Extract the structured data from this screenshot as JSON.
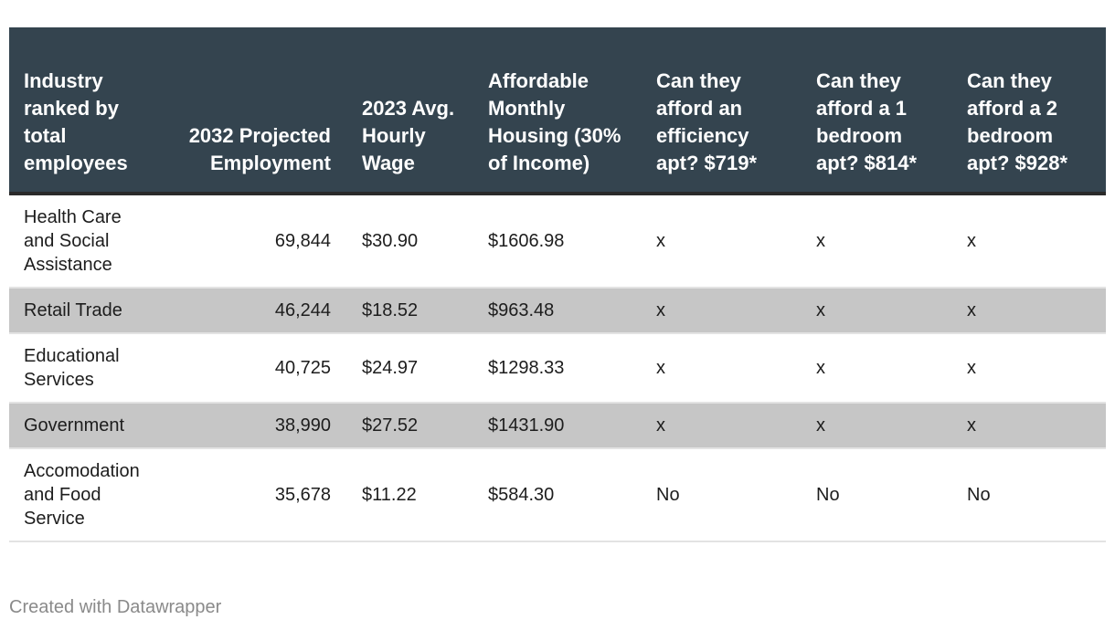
{
  "chart_data": {
    "type": "table",
    "columns": [
      "Industry ranked by total employees",
      "2032 Projected Employment",
      "2023 Avg. Hourly Wage",
      "Affordable Monthly Housing (30% of Income)",
      "Can they afford an efficiency apt? $719*",
      "Can they afford a 1 bedroom apt? $814*",
      "Can they afford a 2 bedroom apt? $928*"
    ],
    "rows": [
      [
        "Health Care and Social Assistance",
        "69,844",
        "$30.90",
        "$1606.98",
        "x",
        "x",
        "x"
      ],
      [
        "Retail Trade",
        "46,244",
        "$18.52",
        "$963.48",
        "x",
        "x",
        "x"
      ],
      [
        "Educational Services",
        "40,725",
        "$24.97",
        "$1298.33",
        "x",
        "x",
        "x"
      ],
      [
        "Government",
        "38,990",
        "$27.52",
        "$1431.90",
        "x",
        "x",
        "x"
      ],
      [
        "Accomodation and Food Service",
        "35,678",
        "$11.22",
        "$584.30",
        "No",
        "No",
        "No"
      ]
    ],
    "row_shading": [
      false,
      true,
      false,
      true,
      false
    ]
  },
  "colors": {
    "header_bg": "#34444f",
    "header_text": "#ffffff",
    "shaded_row": "#c6c6c6",
    "footer_text": "#8a8a8a"
  },
  "footer": {
    "credit": "Created with Datawrapper"
  }
}
